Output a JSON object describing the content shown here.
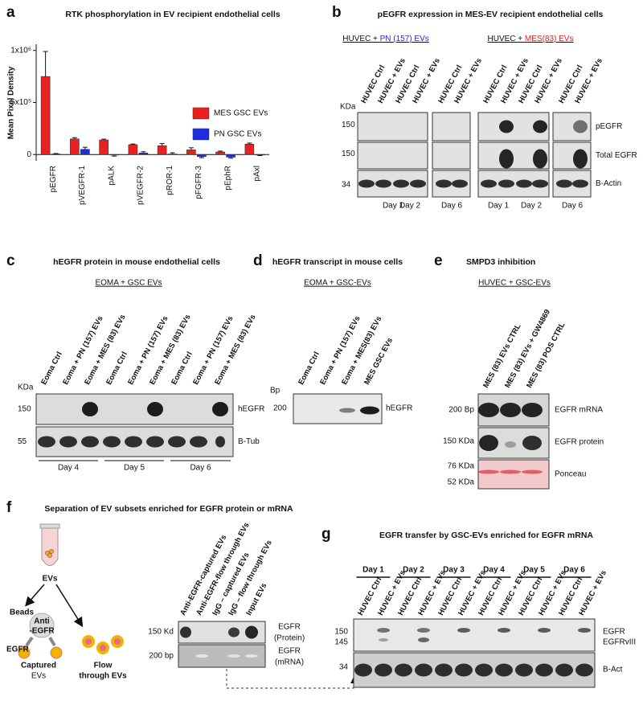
{
  "chart_data": {
    "type": "bar",
    "panel_label": "a",
    "title": "RTK phosphorylation in EV recipient endothelial cells",
    "y_label": "Mean Pixel Density",
    "categories": [
      "pEGFR",
      "pVEGFR-1",
      "pALK",
      "pVEGFR-2",
      "pROR-1",
      "pFGFR-3",
      "pEphR",
      "pAxl"
    ],
    "series": [
      {
        "name": "MES GSC EVs",
        "color": "#e8201e",
        "values": [
          750000,
          150000,
          140000,
          95000,
          85000,
          45000,
          25000,
          100000
        ],
        "errors": [
          240000,
          12000,
          8000,
          6000,
          20000,
          20000,
          8000,
          10000
        ]
      },
      {
        "name": "PN GSC EVs",
        "color": "#1d2ee0",
        "values": [
          5000,
          50000,
          -5000,
          15000,
          5000,
          -20000,
          -25000,
          -5000
        ],
        "errors": [
          5000,
          20000,
          10000,
          12000,
          12000,
          10000,
          10000,
          5000
        ]
      }
    ],
    "ylim": [
      -60000,
      1060000
    ],
    "yticks": [
      0,
      {
        "value": 500000,
        "label": "5x10⁵"
      },
      {
        "value": 1000000,
        "label": "1x10⁶"
      }
    ],
    "legend": "right"
  },
  "panel_b": {
    "label": "b",
    "title": "pEGFR expression in MES-EV recipient endothelial cells",
    "groups": [
      {
        "prefix": "HUVEC + ",
        "highlight": "PN (157) EVs",
        "color": "#2a2ad0"
      },
      {
        "prefix": "HUVEC + ",
        "highlight": "MES(83) EVs",
        "color": "#e02020"
      }
    ],
    "lanes": [
      "HUVEC Ctrl",
      "HUVEC + EVs",
      "HUVEC Ctrl",
      "HUVEC + EVs",
      "HUVEC Ctrl",
      "HUVEC + EVs",
      "HUVEC Ctrl",
      "HUVEC + EVs",
      "HUVEC Ctrl",
      "HUVEC + EVs",
      "HUVEC Ctrl",
      "HUVEC + EVs"
    ],
    "unit": "KDa",
    "markers": [
      "150",
      "150",
      "34"
    ],
    "rows": [
      "pEGFR",
      "Total EGFR",
      "B-Actin"
    ],
    "days": [
      "Day 1",
      "Day 2",
      "Day 6",
      "Day 1",
      "Day 2",
      "Day 6"
    ]
  },
  "panel_c": {
    "label": "c",
    "title": "hEGFR protein in mouse endothelial cells",
    "subtitle": "EOMA + GSC EVs",
    "lanes": [
      "Eoma Ctrl",
      "Eoma + PN (157) EVs",
      "Eoma + MES (83) EVs",
      "Eoma Ctrl",
      "Eoma + PN (157) EVs",
      "Eoma + MES (83) EVs",
      "Eoma Ctrl",
      "Eoma + PN (157) EVs",
      "Eoma + MES (83) EVs"
    ],
    "unit": "KDa",
    "markers": [
      "150",
      "55"
    ],
    "rows": [
      "hEGFR",
      "B-Tub"
    ],
    "days": [
      "Day 4",
      "Day 5",
      "Day 6"
    ]
  },
  "panel_d": {
    "label": "d",
    "title": "hEGFR transcript in mouse cells",
    "subtitle": "EOMA + GSC-EVs",
    "lanes": [
      "Eoma Ctrl",
      "Eoma + PN (157) EVs",
      "Eoma + MES(83) EVs",
      "MES GSC EVs"
    ],
    "unit": "Bp",
    "markers": [
      "200"
    ],
    "rows": [
      "hEGFR"
    ]
  },
  "panel_e": {
    "label": "e",
    "title": "SMPD3 inhibition",
    "subtitle": "HUVEC + GSC-EVs",
    "lanes": [
      "MES (83) EVs CTRL",
      "MES (83) EVs + GW4869",
      "MES (83) POS CTRL"
    ],
    "markers": [
      "200 Bp",
      "150 KDa",
      "76 KDa",
      "52 KDa"
    ],
    "rows": [
      "EGFR mRNA",
      "EGFR protein",
      "Ponceau"
    ]
  },
  "panel_f": {
    "label": "f",
    "title": "Separation of EV subsets enriched for EGFR protein or mRNA",
    "diagram": {
      "evs": "EVs",
      "beads": "Beads",
      "antibody": [
        "Anti",
        "-EGFR"
      ],
      "egfr": "EGFR",
      "captured": [
        "Captured",
        "EVs"
      ],
      "flow": [
        "Flow",
        "through EVs"
      ]
    },
    "lanes": [
      "Anti-EGFR-captured EVs",
      "Anti-EGFR-flow through EVs",
      "IgG – captured EVs",
      "IgG – flow through EVs",
      "Input EVs"
    ],
    "markers": [
      "150 Kd",
      "200 bp"
    ],
    "rows": [
      [
        "EGFR",
        "(Protein)"
      ],
      [
        "EGFR",
        "(mRNA)"
      ]
    ]
  },
  "panel_g": {
    "label": "g",
    "title": "EGFR transfer by GSC-EVs enriched for EGFR mRNA",
    "days": [
      "Day 1",
      "Day 2",
      "Day 3",
      "Day 4",
      "Day 5",
      "Day 6"
    ],
    "lanes": [
      "HUVEC Ctrl",
      "HUVEC + EVs",
      "HUVEC Ctrl",
      "HUVEC + EVs",
      "HUVEC Ctrl",
      "HUVEC + EVs",
      "HUVEC Ctrl",
      "HUVEC + EVs",
      "HUVEC Ctrl",
      "HUVEC + EVs",
      "HUVEC Ctrl",
      "HUVEC + EVs"
    ],
    "markers": [
      "150",
      "145",
      "34"
    ],
    "rows": [
      "EGFR",
      "EGFRvIII",
      "B-Act"
    ]
  }
}
